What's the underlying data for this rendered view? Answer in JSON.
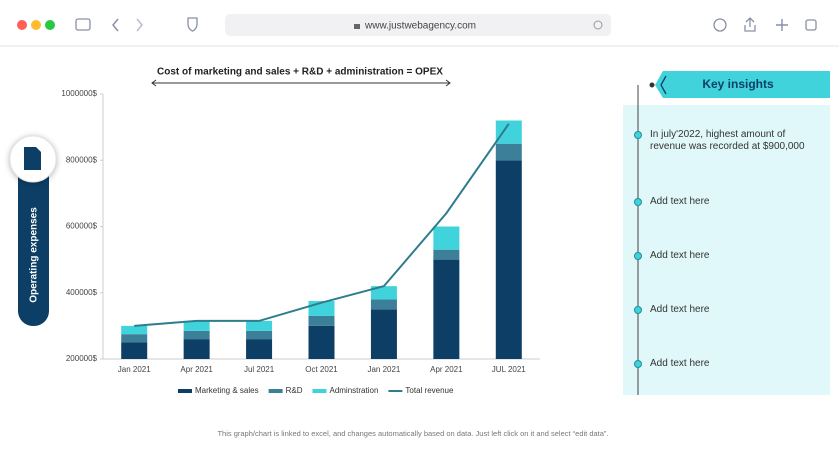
{
  "browser": {
    "url": "www.justwebagency.com"
  },
  "sidebar": {
    "label": "Operating expenses"
  },
  "chart_data": {
    "type": "bar",
    "annotation": "Cost of marketing and sales + R&D + administration = OPEX",
    "categories": [
      "Jan 2021",
      "Apr 2021",
      "Jul 2021",
      "Oct 2021",
      "Jan 2021",
      "Apr 2021",
      "JUL 2021"
    ],
    "series": [
      {
        "name": "Marketing & sales",
        "color": "#0d3f66",
        "values": [
          250000,
          260000,
          260000,
          300000,
          350000,
          500000,
          800000
        ]
      },
      {
        "name": "R&D",
        "color": "#3b7f99",
        "values": [
          25000,
          25000,
          25000,
          30000,
          30000,
          30000,
          50000
        ]
      },
      {
        "name": "Adminstration",
        "color": "#40d3dc",
        "values": [
          25000,
          30000,
          30000,
          45000,
          40000,
          70000,
          70000
        ]
      },
      {
        "name": "Total revenue",
        "color": "#2e7d8c",
        "type": "line",
        "values": [
          300000,
          315000,
          315000,
          370000,
          420000,
          640000,
          910000
        ]
      }
    ],
    "ylim": [
      200000,
      1000000
    ],
    "yticks": [
      {
        "value": 200000,
        "label": "200000$"
      },
      {
        "value": 400000,
        "label": "400000$"
      },
      {
        "value": 600000,
        "label": "600000$"
      },
      {
        "value": 800000,
        "label": "800000$"
      },
      {
        "value": 1000000,
        "label": "1000000$"
      }
    ],
    "grid": false
  },
  "insights": {
    "title": "Key insights",
    "items": [
      "In july'2022, highest amount of revenue was recorded at $900,000",
      "Add text here",
      "Add text here",
      "Add text here",
      "Add text here"
    ]
  },
  "footer": "This graph/chart is linked to excel, and changes automatically based on data. Just left click on it and select “edit data”."
}
